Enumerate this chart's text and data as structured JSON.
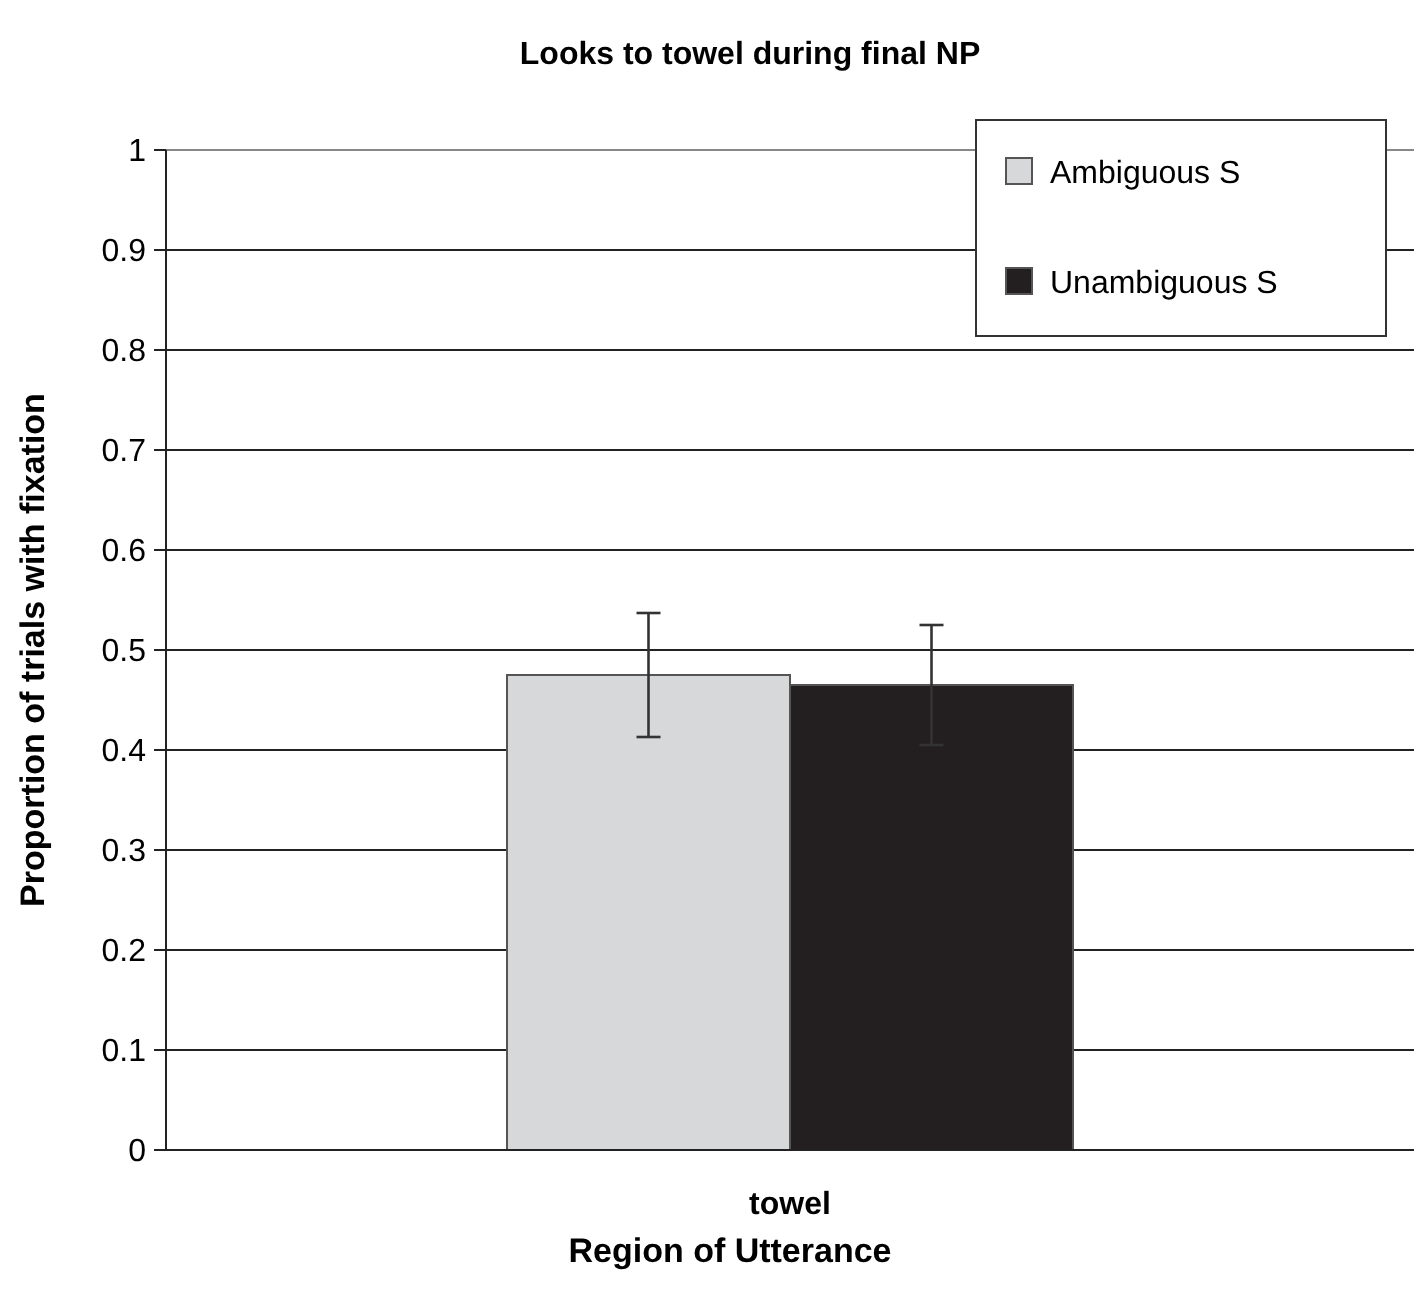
{
  "chart_data": {
    "type": "bar",
    "title": "Looks to towel during final NP",
    "xlabel": "Region of Utterance",
    "ylabel": "Proportion of trials with fixation",
    "categories": [
      "towel"
    ],
    "series": [
      {
        "name": "Ambiguous S",
        "color": "#d7d8da",
        "values": [
          0.475
        ],
        "errors": [
          0.062
        ]
      },
      {
        "name": "Unambiguous S",
        "color": "#231f20",
        "values": [
          0.465
        ],
        "errors": [
          0.06
        ]
      }
    ],
    "ylim": [
      0,
      1
    ],
    "yticks": [
      0,
      0.1,
      0.2,
      0.3,
      0.4,
      0.5,
      0.6,
      0.7,
      0.8,
      0.9,
      1
    ],
    "grid": "y",
    "legend": "top right"
  }
}
